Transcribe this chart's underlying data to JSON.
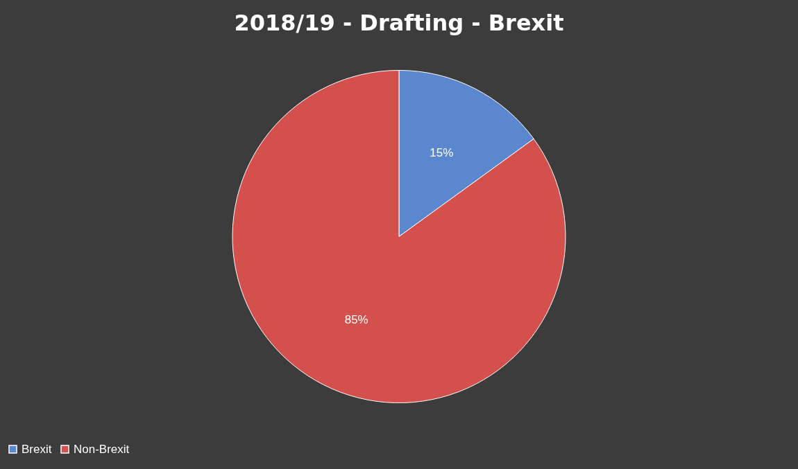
{
  "chart_data": {
    "type": "pie",
    "title": "2018/19 - Drafting - Brexit",
    "categories": [
      "Brexit",
      "Non-Brexit"
    ],
    "values": [
      15,
      85
    ],
    "colors": [
      "#5b87cf",
      "#d4504d"
    ],
    "value_labels": [
      "15%",
      "85%"
    ],
    "legend": "bottom"
  }
}
